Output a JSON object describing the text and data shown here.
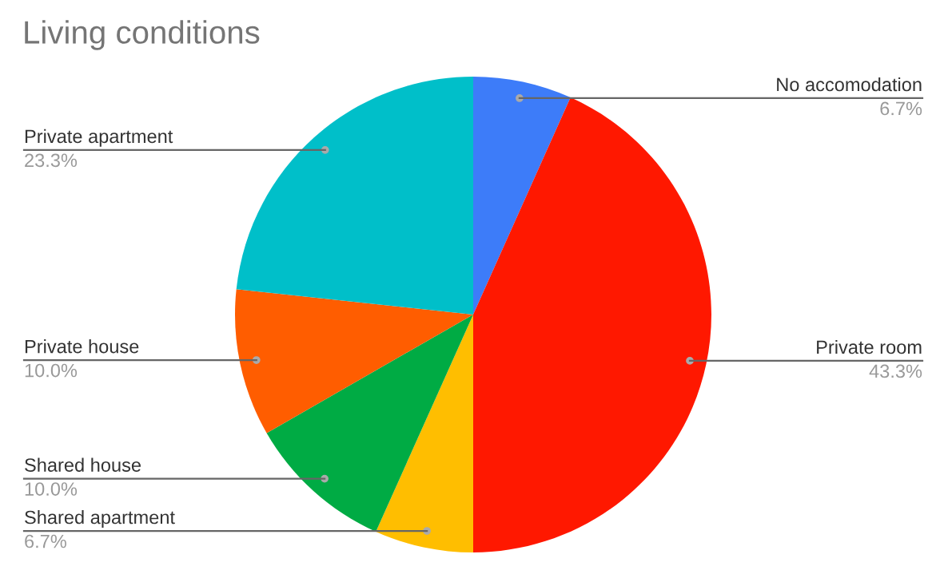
{
  "chart_data": {
    "type": "pie",
    "title": "Living conditions",
    "categories": [
      "No accomodation",
      "Private room",
      "Shared apartment",
      "Shared house",
      "Private house",
      "Private apartment"
    ],
    "values": [
      6.7,
      43.3,
      6.7,
      10.0,
      10.0,
      23.3
    ],
    "value_labels": [
      "6.7%",
      "43.3%",
      "6.7%",
      "10.0%",
      "10.0%",
      "23.3%"
    ],
    "colors": [
      "#3d7cf9",
      "#ff1800",
      "#ffbe00",
      "#00ab44",
      "#ff5d00",
      "#00bfc9"
    ],
    "legend": false
  }
}
